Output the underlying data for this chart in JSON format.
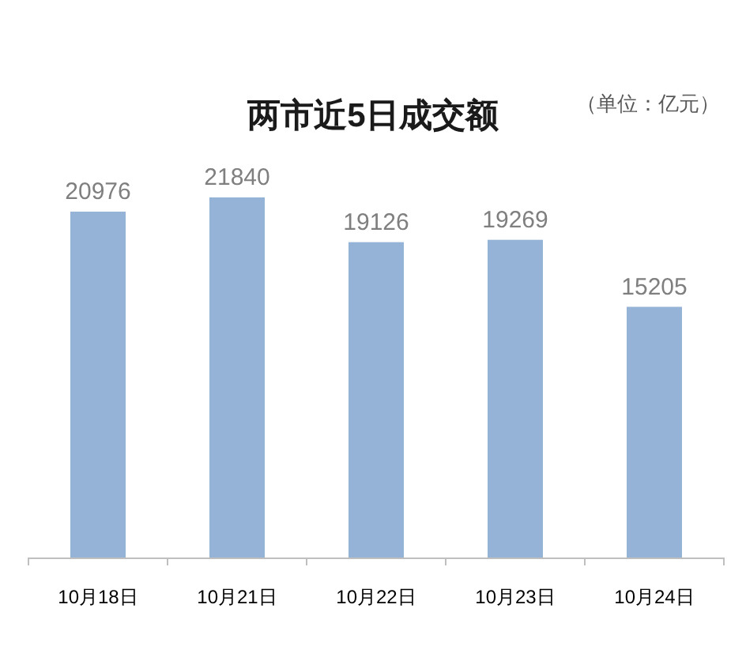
{
  "chart_data": {
    "type": "bar",
    "title": "两市近5日成交额",
    "subtitle": "（单位：亿元）",
    "categories": [
      "10月18日",
      "10月21日",
      "10月22日",
      "10月23日",
      "10月24日"
    ],
    "values": [
      20976,
      21840,
      19126,
      19269,
      15205
    ],
    "color": "#95b3d7",
    "data_labels": true
  }
}
